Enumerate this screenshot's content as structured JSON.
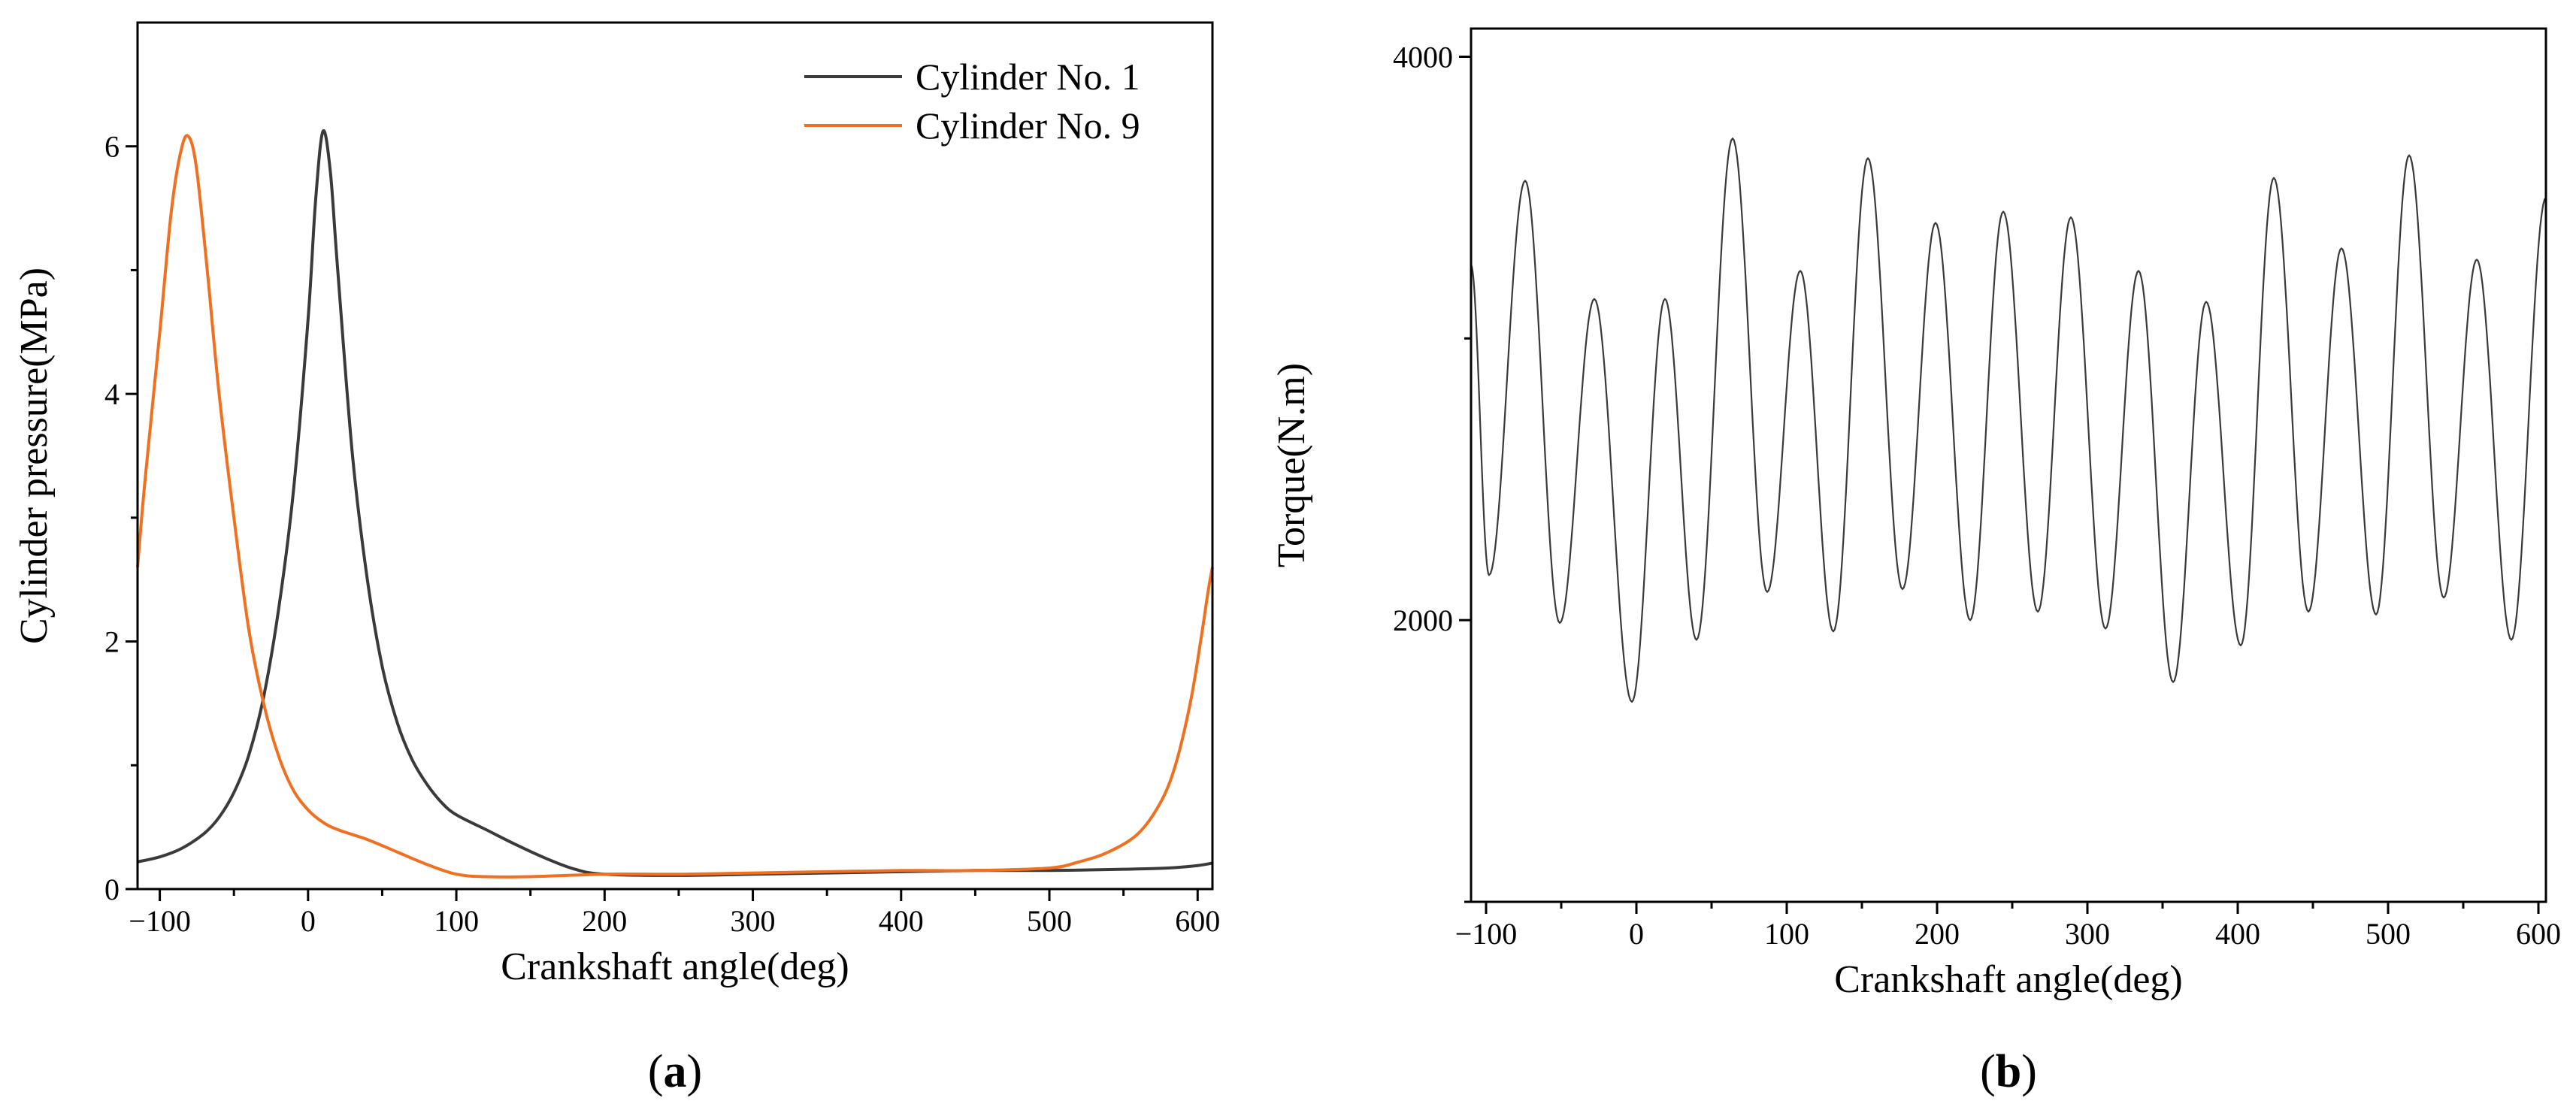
{
  "chart_data": [
    {
      "id": "a",
      "type": "line",
      "caption": "a",
      "xlabel": "Crankshaft angle(deg)",
      "ylabel": "Cylinder pressure(MPa)",
      "xlim": [
        -115,
        610
      ],
      "ylim": [
        0,
        7
      ],
      "xticks": [
        -100,
        0,
        100,
        200,
        300,
        400,
        500,
        600
      ],
      "yticks": [
        0,
        2,
        4,
        6
      ],
      "grid": false,
      "legend_position": "top-right",
      "series": [
        {
          "name": "Cylinder No. 1",
          "color": "#3a3a3a",
          "points": [
            [
              -115,
              0.22
            ],
            [
              -100,
              0.26
            ],
            [
              -85,
              0.33
            ],
            [
              -70,
              0.45
            ],
            [
              -60,
              0.58
            ],
            [
              -50,
              0.78
            ],
            [
              -40,
              1.08
            ],
            [
              -30,
              1.55
            ],
            [
              -20,
              2.25
            ],
            [
              -10,
              3.2
            ],
            [
              0,
              4.6
            ],
            [
              5,
              5.55
            ],
            [
              10,
              6.12
            ],
            [
              15,
              5.8
            ],
            [
              20,
              5.0
            ],
            [
              30,
              3.5
            ],
            [
              40,
              2.5
            ],
            [
              50,
              1.8
            ],
            [
              60,
              1.35
            ],
            [
              70,
              1.05
            ],
            [
              80,
              0.85
            ],
            [
              90,
              0.7
            ],
            [
              100,
              0.6
            ],
            [
              120,
              0.48
            ],
            [
              140,
              0.36
            ],
            [
              160,
              0.25
            ],
            [
              180,
              0.16
            ],
            [
              200,
              0.12
            ],
            [
              250,
              0.11
            ],
            [
              300,
              0.12
            ],
            [
              350,
              0.13
            ],
            [
              400,
              0.14
            ],
            [
              450,
              0.15
            ],
            [
              500,
              0.15
            ],
            [
              550,
              0.16
            ],
            [
              580,
              0.17
            ],
            [
              600,
              0.19
            ],
            [
              610,
              0.21
            ]
          ]
        },
        {
          "name": "Cylinder No. 9",
          "color": "#f07020",
          "points": [
            [
              -115,
              2.6
            ],
            [
              -110,
              3.3
            ],
            [
              -100,
              4.5
            ],
            [
              -92,
              5.5
            ],
            [
              -85,
              6.0
            ],
            [
              -80,
              6.07
            ],
            [
              -75,
              5.8
            ],
            [
              -68,
              5.0
            ],
            [
              -60,
              4.0
            ],
            [
              -50,
              3.0
            ],
            [
              -40,
              2.1
            ],
            [
              -30,
              1.5
            ],
            [
              -20,
              1.08
            ],
            [
              -10,
              0.8
            ],
            [
              0,
              0.64
            ],
            [
              10,
              0.54
            ],
            [
              20,
              0.48
            ],
            [
              40,
              0.4
            ],
            [
              60,
              0.3
            ],
            [
              80,
              0.2
            ],
            [
              100,
              0.12
            ],
            [
              120,
              0.1
            ],
            [
              150,
              0.1
            ],
            [
              200,
              0.12
            ],
            [
              250,
              0.12
            ],
            [
              300,
              0.13
            ],
            [
              350,
              0.14
            ],
            [
              400,
              0.15
            ],
            [
              450,
              0.15
            ],
            [
              500,
              0.17
            ],
            [
              520,
              0.22
            ],
            [
              540,
              0.3
            ],
            [
              560,
              0.45
            ],
            [
              575,
              0.7
            ],
            [
              585,
              1.0
            ],
            [
              595,
              1.5
            ],
            [
              602,
              2.0
            ],
            [
              607,
              2.4
            ],
            [
              610,
              2.6
            ]
          ]
        }
      ]
    },
    {
      "id": "b",
      "type": "line",
      "caption": "b",
      "xlabel": "Crankshaft angle(deg)",
      "ylabel": "Torque(N.m)",
      "xlim": [
        -110,
        605
      ],
      "ylim": [
        1000,
        4100
      ],
      "xticks": [
        -100,
        0,
        100,
        200,
        300,
        400,
        500,
        600
      ],
      "yticks": [
        2000,
        4000
      ],
      "grid": false,
      "series": [
        {
          "name": "Torque",
          "color": "#3a3a3a",
          "extrema": [
            [
              -110,
              3260
            ],
            [
              -98,
              2160
            ],
            [
              -74,
              3560
            ],
            [
              -51,
              1990
            ],
            [
              -28,
              3140
            ],
            [
              -3,
              1710
            ],
            [
              19,
              3140
            ],
            [
              40,
              1930
            ],
            [
              64,
              3710
            ],
            [
              87,
              2100
            ],
            [
              109,
              3240
            ],
            [
              131,
              1960
            ],
            [
              154,
              3640
            ],
            [
              177,
              2110
            ],
            [
              199,
              3410
            ],
            [
              222,
              2000
            ],
            [
              244,
              3450
            ],
            [
              267,
              2030
            ],
            [
              289,
              3430
            ],
            [
              312,
              1970
            ],
            [
              334,
              3240
            ],
            [
              357,
              1780
            ],
            [
              379,
              3130
            ],
            [
              402,
              1910
            ],
            [
              424,
              3570
            ],
            [
              447,
              2030
            ],
            [
              469,
              3320
            ],
            [
              492,
              2020
            ],
            [
              514,
              3650
            ],
            [
              537,
              2080
            ],
            [
              559,
              3280
            ],
            [
              582,
              1930
            ],
            [
              605,
              3500
            ]
          ]
        }
      ]
    }
  ]
}
